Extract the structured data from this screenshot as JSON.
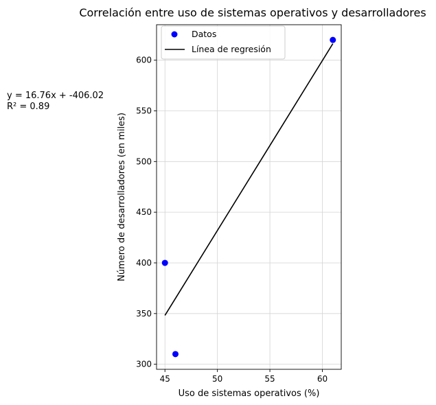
{
  "chart_data": {
    "type": "scatter",
    "title": "Correlación entre uso de sistemas operativos y desarrolladores",
    "xlabel": "Uso de sistemas operativos (%)",
    "ylabel": "Número de desarrolladores (en miles)",
    "xlim": [
      44.2,
      61.8
    ],
    "ylim": [
      295,
      635
    ],
    "xticks": [
      45,
      50,
      55,
      60
    ],
    "yticks": [
      300,
      350,
      400,
      450,
      500,
      550,
      600
    ],
    "grid": true,
    "legend_position": "top-left",
    "series": [
      {
        "name": "Datos",
        "kind": "scatter",
        "color": "#0000ff",
        "points": [
          {
            "x": 45,
            "y": 400
          },
          {
            "x": 46,
            "y": 310
          },
          {
            "x": 61,
            "y": 620
          }
        ]
      },
      {
        "name": "Línea de regresión",
        "kind": "line",
        "color": "#000000",
        "slope": 16.76,
        "intercept": -406.02,
        "x_range": [
          45,
          61
        ]
      }
    ],
    "annotation": {
      "equation": "y = 16.76x + -406.02",
      "r_squared": "R² = 0.89"
    }
  }
}
